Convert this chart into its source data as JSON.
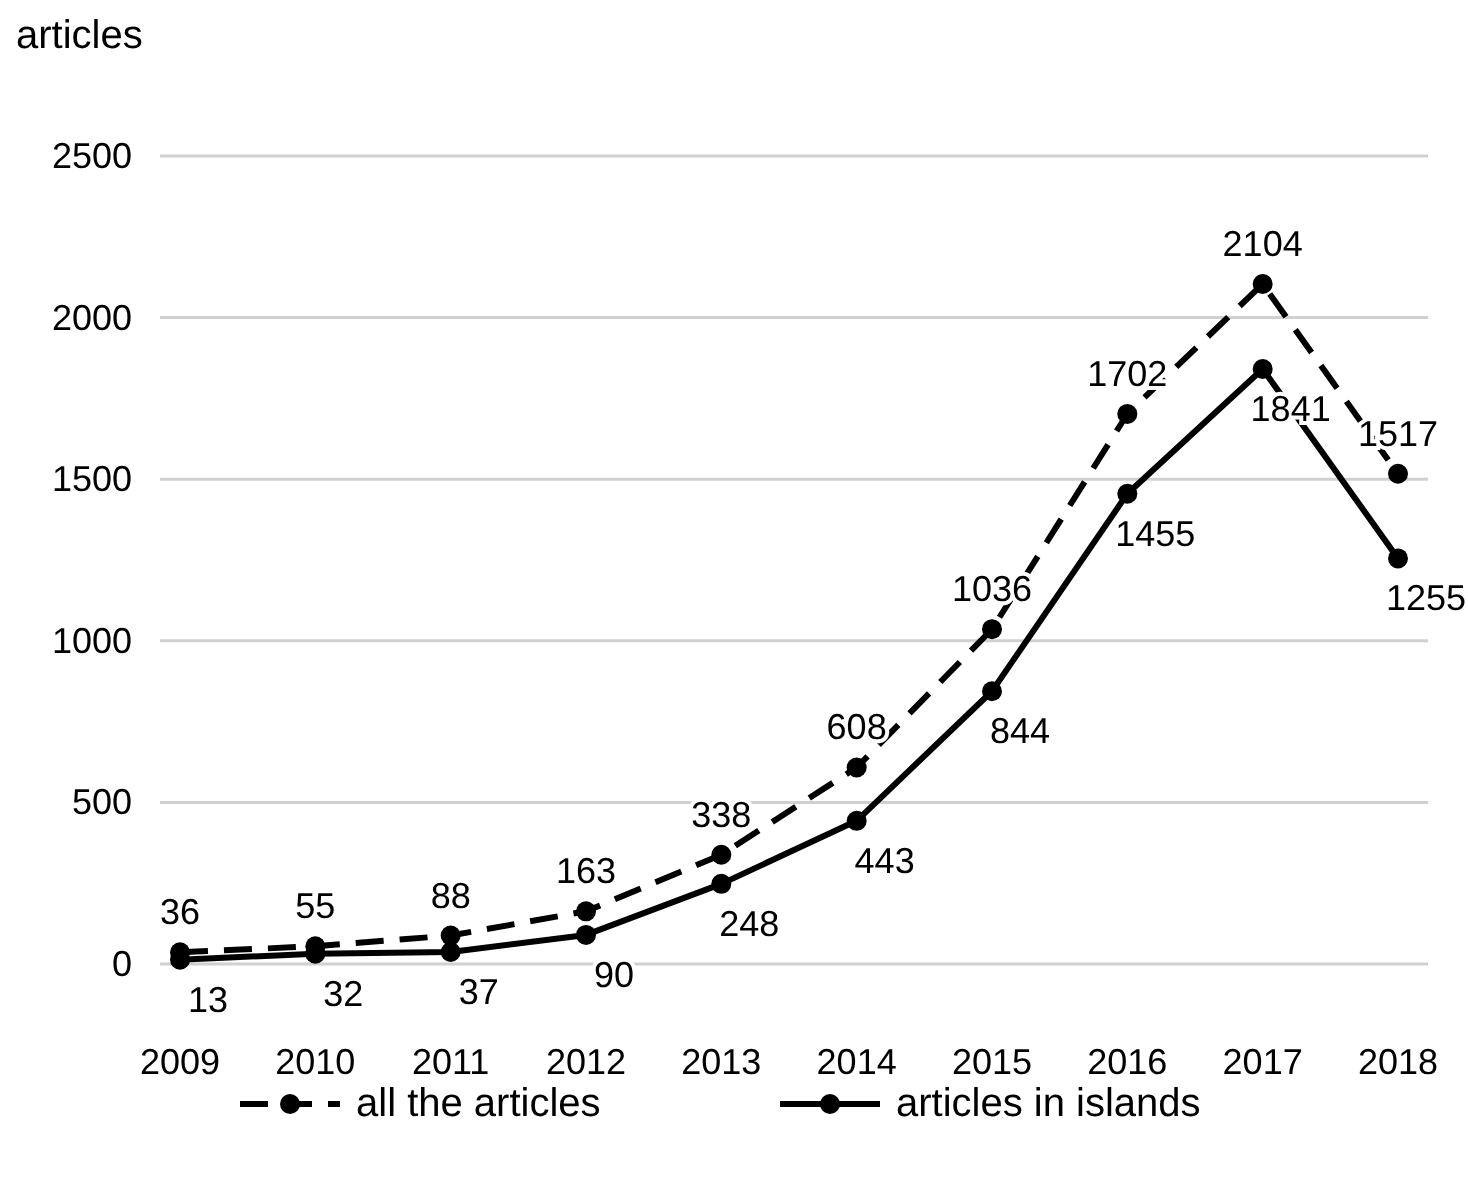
{
  "chart_data": {
    "type": "line",
    "ylabel": "articles",
    "categories": [
      "2009",
      "2010",
      "2011",
      "2012",
      "2013",
      "2014",
      "2015",
      "2016",
      "2017",
      "2018"
    ],
    "series": [
      {
        "name": "all the articles",
        "color": "#000000",
        "line_style": "dashed",
        "values": [
          36,
          55,
          88,
          163,
          338,
          608,
          1036,
          1702,
          2104,
          1517
        ]
      },
      {
        "name": "articles in islands",
        "color": "#000000",
        "line_style": "solid",
        "values": [
          13,
          32,
          37,
          90,
          248,
          443,
          844,
          1455,
          1841,
          1255
        ]
      }
    ],
    "ylim": [
      0,
      2500
    ],
    "yticks": [
      0,
      500,
      1000,
      1500,
      2000,
      2500
    ],
    "grid": "y",
    "legend": "bottom",
    "marker": "circle",
    "data_labels": true
  }
}
